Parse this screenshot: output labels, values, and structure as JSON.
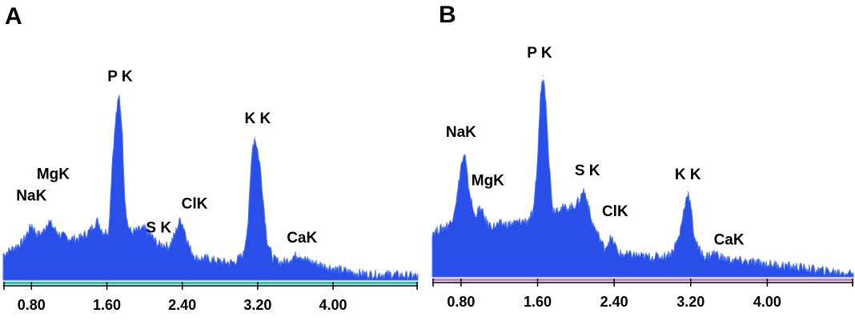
{
  "chart_data": [
    {
      "type": "area",
      "panel_label": "A",
      "colors": {
        "fill": "#2a4ee8",
        "edge": "#4d78f5",
        "baseline_strip": "#39c0a0"
      },
      "xlim": [
        0.5,
        4.9
      ],
      "ylim": [
        0,
        100
      ],
      "xticks": [
        0.8,
        1.6,
        2.4,
        3.2,
        4.0
      ],
      "xtick_labels": [
        "0.80",
        "1.60",
        "2.40",
        "3.20",
        "4.00"
      ],
      "x": [
        0.5,
        0.6,
        0.7,
        0.76,
        0.8,
        0.86,
        0.92,
        0.98,
        1.04,
        1.1,
        1.2,
        1.3,
        1.4,
        1.5,
        1.56,
        1.62,
        1.66,
        1.7,
        1.73,
        1.76,
        1.79,
        1.82,
        1.86,
        1.92,
        2.0,
        2.08,
        2.14,
        2.2,
        2.26,
        2.32,
        2.38,
        2.42,
        2.48,
        2.55,
        2.65,
        2.75,
        2.85,
        2.95,
        3.05,
        3.1,
        3.14,
        3.17,
        3.2,
        3.23,
        3.26,
        3.3,
        3.36,
        3.45,
        3.52,
        3.58,
        3.64,
        3.72,
        3.85,
        4.0,
        4.2,
        4.4,
        4.6,
        4.9
      ],
      "y": [
        13,
        16,
        19,
        24,
        28,
        23,
        24,
        30,
        26,
        23,
        21,
        21,
        24,
        30,
        24,
        25,
        62,
        84,
        93,
        78,
        42,
        28,
        24,
        25,
        26,
        22,
        18,
        18,
        17,
        23,
        31,
        26,
        16,
        11,
        11,
        10,
        9,
        9,
        13,
        30,
        66,
        72,
        65,
        56,
        40,
        20,
        11,
        9,
        10,
        12,
        13,
        10,
        8,
        6,
        4,
        3,
        3,
        2
      ],
      "annotations": [
        {
          "text": "NaK",
          "x": 0.8,
          "y": 40
        },
        {
          "text": "MgK",
          "x": 1.03,
          "y": 51
        },
        {
          "text": "P K",
          "x": 1.74,
          "y": 100
        },
        {
          "text": "S K",
          "x": 2.15,
          "y": 24
        },
        {
          "text": "ClK",
          "x": 2.53,
          "y": 36
        },
        {
          "text": "K K",
          "x": 3.2,
          "y": 79
        },
        {
          "text": "CaK",
          "x": 3.67,
          "y": 19
        }
      ]
    },
    {
      "type": "area",
      "panel_label": "B",
      "colors": {
        "fill": "#2a4ee8",
        "edge": "#4d78f5",
        "baseline_strip": "#c080c8"
      },
      "xlim": [
        0.5,
        4.9
      ],
      "ylim": [
        0,
        100
      ],
      "xticks": [
        0.8,
        1.6,
        2.4,
        3.2,
        4.0
      ],
      "xtick_labels": [
        "0.80",
        "1.60",
        "2.40",
        "3.20",
        "4.00"
      ],
      "x": [
        0.5,
        0.6,
        0.7,
        0.76,
        0.8,
        0.84,
        0.88,
        0.94,
        1.0,
        1.04,
        1.08,
        1.14,
        1.2,
        1.3,
        1.4,
        1.5,
        1.56,
        1.6,
        1.63,
        1.66,
        1.69,
        1.72,
        1.76,
        1.82,
        1.9,
        1.98,
        2.04,
        2.08,
        2.12,
        2.16,
        2.22,
        2.3,
        2.36,
        2.4,
        2.44,
        2.5,
        2.6,
        2.7,
        2.8,
        2.9,
        3.0,
        3.08,
        3.14,
        3.17,
        3.2,
        3.23,
        3.28,
        3.35,
        3.45,
        3.55,
        3.7,
        3.9,
        4.1,
        4.3,
        4.6,
        4.9
      ],
      "y": [
        22,
        24,
        27,
        40,
        55,
        60,
        44,
        30,
        34,
        30,
        26,
        25,
        26,
        26,
        27,
        28,
        32,
        58,
        90,
        99,
        86,
        56,
        33,
        34,
        34,
        35,
        38,
        43,
        38,
        28,
        22,
        14,
        19,
        17,
        12,
        11,
        11,
        10,
        10,
        10,
        12,
        20,
        36,
        42,
        35,
        22,
        14,
        10,
        12,
        9,
        8,
        7,
        6,
        5,
        3,
        2
      ],
      "annotations": [
        {
          "text": "NaK",
          "x": 0.8,
          "y": 69
        },
        {
          "text": "MgK",
          "x": 1.08,
          "y": 45
        },
        {
          "text": "P K",
          "x": 1.62,
          "y": 108
        },
        {
          "text": "S K",
          "x": 2.12,
          "y": 50
        },
        {
          "text": "ClK",
          "x": 2.41,
          "y": 30
        },
        {
          "text": "K K",
          "x": 3.17,
          "y": 48
        },
        {
          "text": "CaK",
          "x": 3.6,
          "y": 16
        }
      ]
    }
  ]
}
